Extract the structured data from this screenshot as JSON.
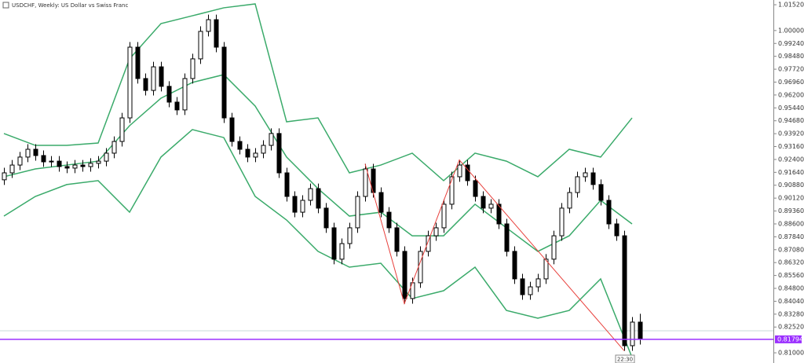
{
  "chart_data": {
    "type": "candlestick",
    "title": "USDCHF, Weekly:  US Dollar vs Swiss Franc",
    "ylim": [
      0.804,
      1.018
    ],
    "yticks": [
      {
        "value": 1.0152,
        "label": "1.01520"
      },
      {
        "value": 1.0,
        "label": "1.00000"
      },
      {
        "value": 0.9924,
        "label": "0.99240"
      },
      {
        "value": 0.9848,
        "label": "0.98480"
      },
      {
        "value": 0.9772,
        "label": "0.97720"
      },
      {
        "value": 0.9696,
        "label": "0.96960"
      },
      {
        "value": 0.962,
        "label": "0.96200"
      },
      {
        "value": 0.9544,
        "label": "0.95440"
      },
      {
        "value": 0.9468,
        "label": "0.94680"
      },
      {
        "value": 0.9392,
        "label": "0.93920"
      },
      {
        "value": 0.9316,
        "label": "0.93160"
      },
      {
        "value": 0.924,
        "label": "0.92400"
      },
      {
        "value": 0.9164,
        "label": "0.91640"
      },
      {
        "value": 0.9088,
        "label": "0.90880"
      },
      {
        "value": 0.9012,
        "label": "0.90120"
      },
      {
        "value": 0.8936,
        "label": "0.89360"
      },
      {
        "value": 0.886,
        "label": "0.88600"
      },
      {
        "value": 0.8784,
        "label": "0.87840"
      },
      {
        "value": 0.8708,
        "label": "0.87080"
      },
      {
        "value": 0.8632,
        "label": "0.86320"
      },
      {
        "value": 0.8556,
        "label": "0.85560"
      },
      {
        "value": 0.848,
        "label": "0.84800"
      },
      {
        "value": 0.8404,
        "label": "0.84040"
      },
      {
        "value": 0.8328,
        "label": "0.83280"
      },
      {
        "value": 0.8252,
        "label": "0.82520"
      },
      {
        "value": 0.81,
        "label": "0.81000"
      }
    ],
    "candles": {
      "open": [
        0.912,
        0.9161,
        0.9207,
        0.9254,
        0.93,
        0.9263,
        0.9226,
        0.923,
        0.9198,
        0.9189,
        0.9207,
        0.9198,
        0.9217,
        0.923,
        0.9277,
        0.9346,
        0.9485,
        0.9902,
        0.9717,
        0.9647,
        0.9786,
        0.9671,
        0.9578,
        0.9532,
        0.9717,
        0.9833,
        0.9995,
        1.0064,
        0.9902,
        0.9485,
        0.9346,
        0.93,
        0.9254,
        0.9277,
        0.9323,
        0.9393,
        0.9161,
        0.9022,
        0.8929,
        0.8999,
        0.9068,
        0.8953,
        0.8837,
        0.8652,
        0.8744,
        0.8837,
        0.9022,
        0.9184,
        0.9045,
        0.8929,
        0.8837,
        0.8698,
        0.842,
        0.8513,
        0.8698,
        0.879,
        0.8837,
        0.8976,
        0.9138,
        0.9207,
        0.9115,
        0.9022,
        0.8953,
        0.8976,
        0.886,
        0.8698,
        0.8536,
        0.8443,
        0.8489,
        0.8536,
        0.8652,
        0.879,
        0.8953,
        0.9045,
        0.9138,
        0.9161,
        0.9092,
        0.8999,
        0.886,
        0.879,
        0.8142,
        0.8281
      ],
      "high": [
        0.9191,
        0.9237,
        0.9284,
        0.933,
        0.933,
        0.9293,
        0.926,
        0.926,
        0.9228,
        0.9237,
        0.9237,
        0.9247,
        0.926,
        0.9307,
        0.9376,
        0.9515,
        0.9932,
        0.9932,
        0.9747,
        0.9816,
        0.9816,
        0.9701,
        0.9608,
        0.9747,
        0.9863,
        1.0025,
        1.0094,
        1.0094,
        0.9932,
        0.9515,
        0.9376,
        0.933,
        0.9307,
        0.9353,
        0.9423,
        0.9423,
        0.9191,
        0.9052,
        0.9029,
        0.9098,
        0.9098,
        0.8983,
        0.8867,
        0.8774,
        0.8867,
        0.9052,
        0.9214,
        0.9214,
        0.9075,
        0.8959,
        0.8867,
        0.8728,
        0.8543,
        0.8728,
        0.882,
        0.8867,
        0.9006,
        0.9168,
        0.9237,
        0.9237,
        0.9145,
        0.9052,
        0.9006,
        0.9006,
        0.889,
        0.8728,
        0.8566,
        0.8519,
        0.8566,
        0.8682,
        0.882,
        0.8983,
        0.9075,
        0.9168,
        0.9191,
        0.9191,
        0.9122,
        0.9029,
        0.889,
        0.882,
        0.8311,
        0.833
      ],
      "low": [
        0.909,
        0.9131,
        0.9177,
        0.9224,
        0.9233,
        0.9196,
        0.9196,
        0.9168,
        0.9159,
        0.9159,
        0.9168,
        0.9168,
        0.9187,
        0.92,
        0.9247,
        0.9316,
        0.9455,
        0.9687,
        0.9617,
        0.9617,
        0.9641,
        0.9548,
        0.9502,
        0.9502,
        0.9687,
        0.9803,
        0.9965,
        0.9872,
        0.9455,
        0.9316,
        0.927,
        0.9224,
        0.9224,
        0.9247,
        0.9293,
        0.9131,
        0.8992,
        0.8899,
        0.8899,
        0.8969,
        0.8923,
        0.8807,
        0.8622,
        0.8622,
        0.8714,
        0.8807,
        0.8992,
        0.9015,
        0.8899,
        0.8807,
        0.8668,
        0.839,
        0.839,
        0.8483,
        0.8668,
        0.876,
        0.8807,
        0.8946,
        0.9108,
        0.9085,
        0.8992,
        0.8923,
        0.8923,
        0.883,
        0.8668,
        0.8506,
        0.8413,
        0.8413,
        0.8459,
        0.8506,
        0.8622,
        0.876,
        0.8923,
        0.9015,
        0.9108,
        0.9062,
        0.8969,
        0.883,
        0.876,
        0.8112,
        0.8112,
        0.8149
      ],
      "close": [
        0.9161,
        0.9207,
        0.9254,
        0.93,
        0.9263,
        0.9226,
        0.923,
        0.9198,
        0.9189,
        0.9207,
        0.9198,
        0.9217,
        0.923,
        0.9277,
        0.9346,
        0.9485,
        0.9902,
        0.9717,
        0.9647,
        0.9786,
        0.9671,
        0.9578,
        0.9532,
        0.9717,
        0.9833,
        0.9995,
        1.0064,
        0.9902,
        0.9485,
        0.9346,
        0.93,
        0.9254,
        0.9277,
        0.9323,
        0.9393,
        0.9161,
        0.9022,
        0.8929,
        0.8999,
        0.9068,
        0.8953,
        0.8837,
        0.8652,
        0.8744,
        0.8837,
        0.9022,
        0.9184,
        0.9045,
        0.8929,
        0.8837,
        0.8698,
        0.842,
        0.8513,
        0.8698,
        0.879,
        0.8837,
        0.8976,
        0.9138,
        0.9207,
        0.9115,
        0.9022,
        0.8953,
        0.8976,
        0.886,
        0.8698,
        0.8536,
        0.8443,
        0.8489,
        0.8536,
        0.8652,
        0.879,
        0.8953,
        0.9045,
        0.9138,
        0.9161,
        0.9092,
        0.8999,
        0.886,
        0.879,
        0.8142,
        0.8281,
        0.8179
      ]
    },
    "bands": {
      "color": "#3aaa6a",
      "x": [
        0,
        4,
        8,
        12,
        16,
        20,
        24,
        28,
        32,
        36,
        40,
        44,
        48,
        52,
        56,
        60,
        64,
        68,
        72,
        76,
        80
      ],
      "upper": [
        0.9393,
        0.9323,
        0.9323,
        0.9337,
        0.9833,
        1.0041,
        1.0087,
        1.0134,
        1.0157,
        0.9462,
        0.9485,
        0.9161,
        0.9207,
        0.9277,
        0.9115,
        0.9277,
        0.923,
        0.9138,
        0.93,
        0.9254,
        0.9485
      ],
      "middle": [
        0.9138,
        0.9184,
        0.9207,
        0.923,
        0.9439,
        0.9601,
        0.9694,
        0.974,
        0.9555,
        0.9254,
        0.9068,
        0.8906,
        0.8929,
        0.879,
        0.879,
        0.8976,
        0.8837,
        0.8698,
        0.879,
        0.8999,
        0.886
      ],
      "lower": [
        0.8906,
        0.9022,
        0.9092,
        0.9115,
        0.8929,
        0.9254,
        0.9416,
        0.9369,
        0.9022,
        0.8883,
        0.8698,
        0.8605,
        0.8628,
        0.842,
        0.8466,
        0.8605,
        0.835,
        0.8304,
        0.835,
        0.8536,
        0.8073
      ]
    },
    "zigzag": {
      "color": "#e8403c",
      "x": [
        46,
        51,
        58,
        79
      ],
      "values": [
        0.9214,
        0.839,
        0.9237,
        0.8112
      ]
    },
    "ask_line": 0.823,
    "current_price": {
      "value": 0.81794,
      "label": "0.81794",
      "color": "#9b30ff"
    },
    "time_label": "22:30"
  }
}
